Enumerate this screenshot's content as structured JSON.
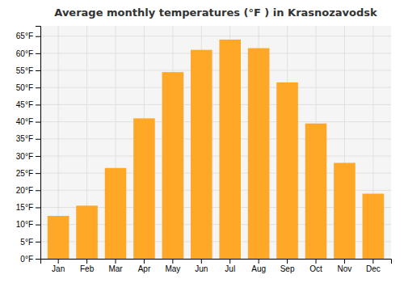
{
  "chart_data": {
    "type": "bar",
    "title": "Average monthly temperatures (°F ) in Krasnozavodsk",
    "categories": [
      "Jan",
      "Feb",
      "Mar",
      "Apr",
      "May",
      "Jun",
      "Jul",
      "Aug",
      "Sep",
      "Oct",
      "Nov",
      "Dec"
    ],
    "values": [
      12.5,
      15.5,
      26.5,
      41.0,
      54.5,
      61.0,
      64.0,
      61.5,
      51.5,
      39.5,
      28.0,
      19.0
    ],
    "color": "#FFA726",
    "ylim": [
      0,
      68
    ],
    "yticks": [
      {
        "value": 0,
        "label": "0°F"
      },
      {
        "value": 5,
        "label": "5°F"
      },
      {
        "value": 10,
        "label": "10°F"
      },
      {
        "value": 15,
        "label": "15°F"
      },
      {
        "value": 20,
        "label": "20°F"
      },
      {
        "value": 25,
        "label": "25°F"
      },
      {
        "value": 30,
        "label": "30°F"
      },
      {
        "value": 35,
        "label": "35°F"
      },
      {
        "value": 40,
        "label": "40°F"
      },
      {
        "value": 45,
        "label": "45°F"
      },
      {
        "value": 50,
        "label": "50°F"
      },
      {
        "value": 55,
        "label": "55°F"
      },
      {
        "value": 60,
        "label": "60°F"
      },
      {
        "value": 65,
        "label": "65°F"
      }
    ],
    "grid": true
  }
}
